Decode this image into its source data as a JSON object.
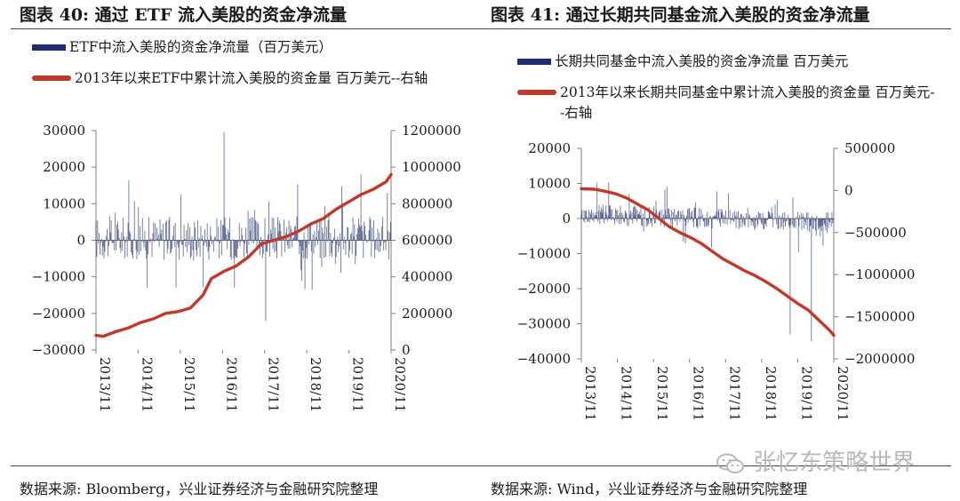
{
  "left": {
    "title": "图表 40:  通过 ETF 流入美股的资金净流量",
    "source": "数据来源:  Bloomberg，兴业证券经济与金融研究院整理"
  },
  "right": {
    "title": "图表 41:  通过长期共同基金流入美股的资金净流量",
    "source": "数据来源:  Wind，兴业证券经济与金融研究院整理"
  },
  "watermark": {
    "text": "张忆东策略世界",
    "icon": "wechat-icon"
  },
  "colors": {
    "bar": "#1f2d6e",
    "line": "#c0392b",
    "axis": "#7f7f7f"
  },
  "chart_data": [
    {
      "type": "bar+line",
      "title": "",
      "legend": {
        "bar_label": "ETF中流入美股的资金净流量（百万美元）",
        "line_label": "2013年以来ETF中累计流入美股的资金量  百万美元--右轴",
        "placement": "top-left"
      },
      "x_ticks": [
        "2013/11",
        "2014/11",
        "2015/11",
        "2016/11",
        "2017/11",
        "2018/11",
        "2019/11",
        "2020/11"
      ],
      "x_range": [
        2013.83,
        2020.92
      ],
      "y_left": {
        "range": [
          -30000,
          30000
        ],
        "ticks": [
          "30000",
          "20000",
          "10000",
          "0",
          "−10000",
          "−20000",
          "−30000"
        ],
        "tick_values": [
          30000,
          20000,
          10000,
          0,
          -10000,
          -20000,
          -30000
        ]
      },
      "y_right": {
        "range": [
          0,
          1200000
        ],
        "ticks": [
          "1200000",
          "1000000",
          "800000",
          "600000",
          "400000",
          "200000",
          "0"
        ],
        "tick_values": [
          1200000,
          1000000,
          800000,
          600000,
          400000,
          200000,
          0
        ]
      },
      "bar_series": {
        "name": "ETF中流入美股的资金净流量（百万美元）",
        "frequency": "weekly",
        "typical_amplitude": 6000,
        "peaks": [
          [
            2016.9,
            29500
          ],
          [
            2017.9,
            -22000
          ],
          [
            2020.2,
            18000
          ]
        ]
      },
      "line_series": {
        "name": "2013年以来ETF中累计流入美股的资金量  百万美元--右轴",
        "x": [
          2013.83,
          2014.0,
          2014.3,
          2014.6,
          2014.9,
          2015.2,
          2015.5,
          2015.8,
          2016.1,
          2016.4,
          2016.6,
          2016.9,
          2017.2,
          2017.5,
          2017.8,
          2018.1,
          2018.4,
          2018.7,
          2019.0,
          2019.3,
          2019.6,
          2019.9,
          2020.2,
          2020.5,
          2020.8,
          2020.92
        ],
        "y": [
          80000,
          75000,
          100000,
          120000,
          150000,
          170000,
          200000,
          210000,
          230000,
          300000,
          390000,
          430000,
          460000,
          510000,
          580000,
          600000,
          620000,
          650000,
          690000,
          720000,
          770000,
          810000,
          850000,
          880000,
          920000,
          960000
        ]
      }
    },
    {
      "type": "bar+line",
      "title": "",
      "legend": {
        "bar_label": "长期共同基金中流入美股的资金净流量  百万美元",
        "line_label": "2013年以来长期共同基金中累计流入美股的资金量  百万美元--右轴",
        "placement": "top-left"
      },
      "x_ticks": [
        "2013/11",
        "2014/11",
        "2015/11",
        "2016/11",
        "2017/11",
        "2018/11",
        "2019/11",
        "2020/11"
      ],
      "x_range": [
        2013.83,
        2020.92
      ],
      "y_left": {
        "range": [
          -40000,
          20000
        ],
        "ticks": [
          "20000",
          "10000",
          "0",
          "−10000",
          "−20000",
          "−30000",
          "−40000"
        ],
        "tick_values": [
          20000,
          10000,
          0,
          -10000,
          -20000,
          -30000,
          -40000
        ]
      },
      "y_right": {
        "range": [
          -2000000,
          500000
        ],
        "ticks": [
          "500000",
          "0",
          "−500000",
          "−1000000",
          "−1500000",
          "−2000000"
        ],
        "tick_values": [
          500000,
          0,
          -500000,
          -1000000,
          -1500000,
          -2000000
        ]
      },
      "bar_series": {
        "name": "长期共同基金中流入美股的资金净流量  百万美元",
        "frequency": "weekly",
        "typical_amplitude": 6000,
        "peaks": [
          [
            2019.7,
            -33000
          ],
          [
            2020.3,
            -35000
          ]
        ]
      },
      "line_series": {
        "name": "2013年以来长期共同基金中累计流入美股的资金量  百万美元--右轴",
        "x": [
          2013.83,
          2014.2,
          2014.5,
          2014.8,
          2015.1,
          2015.4,
          2015.7,
          2016.0,
          2016.3,
          2016.6,
          2016.9,
          2017.2,
          2017.5,
          2017.8,
          2018.1,
          2018.4,
          2018.7,
          2019.0,
          2019.3,
          2019.6,
          2019.9,
          2020.2,
          2020.5,
          2020.8,
          2020.92
        ],
        "y": [
          20000,
          15000,
          -10000,
          -40000,
          -90000,
          -160000,
          -230000,
          -330000,
          -430000,
          -500000,
          -560000,
          -630000,
          -720000,
          -810000,
          -880000,
          -950000,
          -1010000,
          -1080000,
          -1160000,
          -1250000,
          -1340000,
          -1420000,
          -1540000,
          -1660000,
          -1720000
        ]
      }
    }
  ]
}
